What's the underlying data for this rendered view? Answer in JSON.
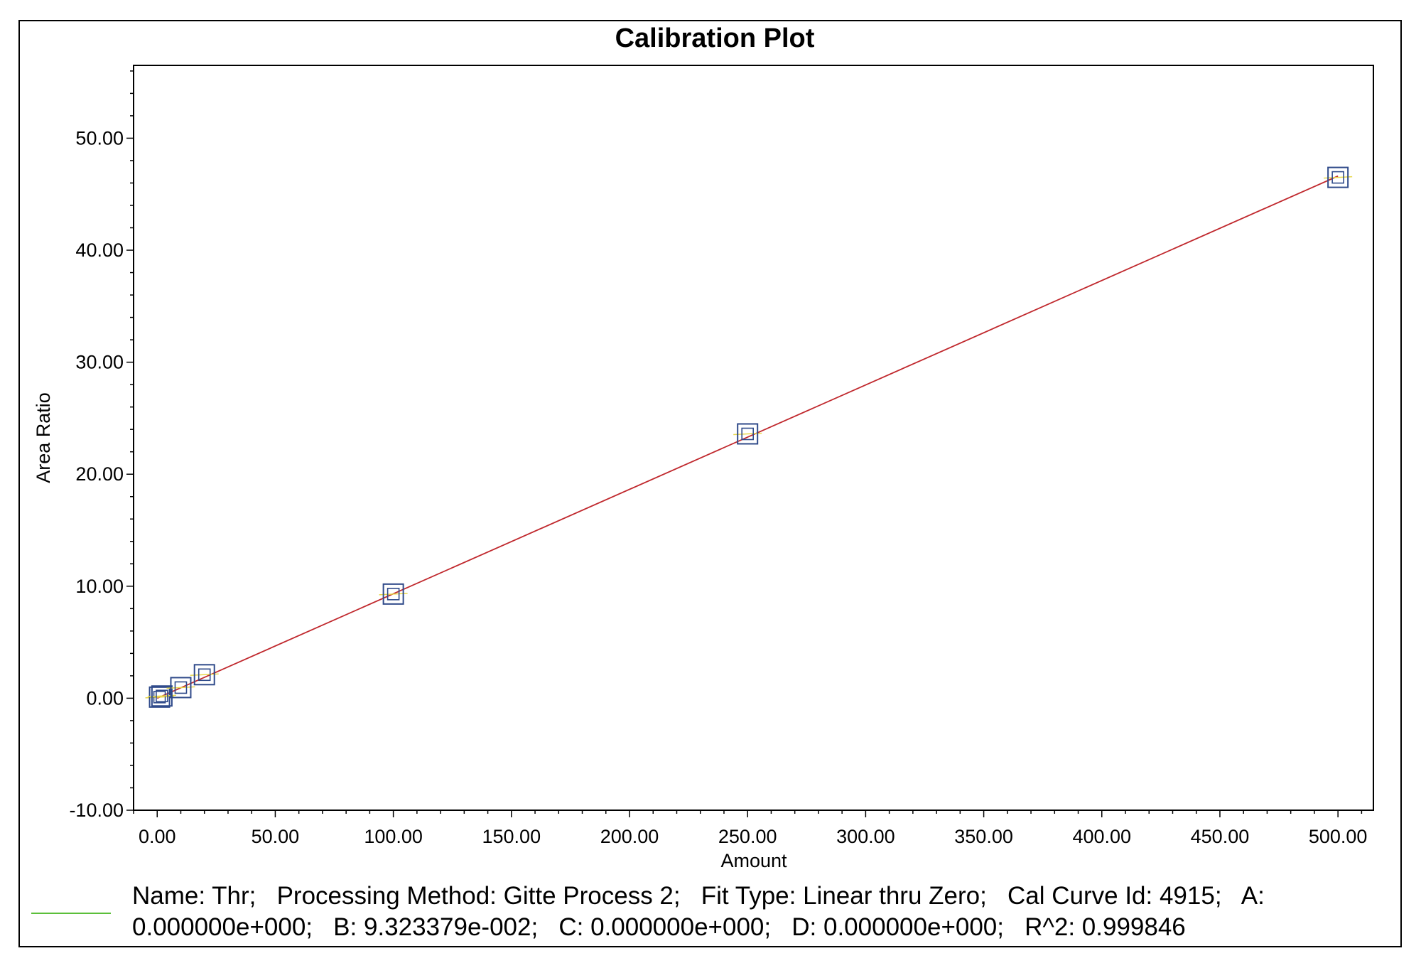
{
  "chart_data": {
    "type": "scatter",
    "title": "Calibration Plot",
    "xlabel": "Amount",
    "ylabel": "Area Ratio",
    "xlim": [
      -10,
      515
    ],
    "ylim": [
      -10,
      56.5
    ],
    "xticks": [
      "0.00",
      "50.00",
      "100.00",
      "150.00",
      "200.00",
      "250.00",
      "300.00",
      "350.00",
      "400.00",
      "450.00",
      "500.00"
    ],
    "yticks": [
      "-10.00",
      "0.00",
      "10.00",
      "20.00",
      "30.00",
      "40.00",
      "50.00"
    ],
    "points": [
      {
        "x": 1,
        "y": 0.1
      },
      {
        "x": 2,
        "y": 0.2
      },
      {
        "x": 10,
        "y": 0.95
      },
      {
        "x": 20,
        "y": 2.1
      },
      {
        "x": 100,
        "y": 9.3
      },
      {
        "x": 250,
        "y": 23.6
      },
      {
        "x": 500,
        "y": 46.5
      }
    ],
    "fit": {
      "type": "Linear thru Zero",
      "slope": 0.09323379,
      "x_range": [
        0,
        500
      ]
    },
    "grid": false,
    "legend": {
      "position": "bottom",
      "line_color": "#5bbf3a",
      "text": "Name: Thr;   Processing Method: Gitte Process 2;   Fit Type: Linear thru Zero;   Cal Curve Id: 4915;   A: 0.000000e+000;   B: 9.323379e-002;   C: 0.000000e+000;   D: 0.000000e+000;   R^2: 0.999846"
    },
    "colors": {
      "fit_line": "#c0282d",
      "point_marker": "#2f4a8a",
      "point_tick": "#e8d84a"
    }
  }
}
